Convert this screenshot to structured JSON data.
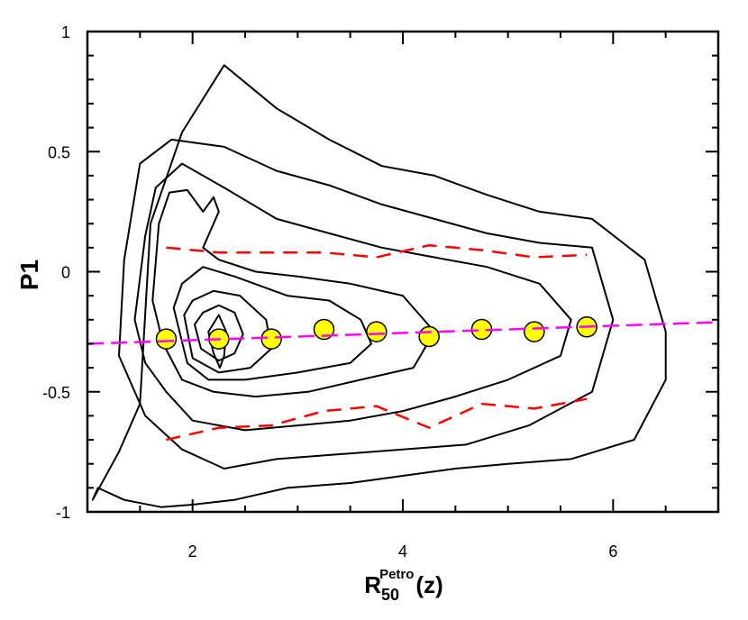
{
  "chart_data": {
    "type": "scatter",
    "title": "",
    "xlabel": {
      "main": "R",
      "sub": "50",
      "sup": "Petro",
      "suffix": "(z)"
    },
    "ylabel": "P1",
    "xlim": [
      1.0,
      7.0
    ],
    "ylim": [
      -1.0,
      1.0
    ],
    "x_ticks": [
      2,
      4,
      6
    ],
    "y_ticks": [
      -1,
      -0.5,
      0,
      0.5,
      1
    ],
    "y_tick_labels": [
      "-1",
      "-0.5",
      "0",
      "0.5",
      "1"
    ],
    "grid": false,
    "series": [
      {
        "kind": "points",
        "color": "#ffff00",
        "x": [
          1.75,
          2.25,
          2.75,
          3.25,
          3.75,
          4.25,
          4.75,
          5.25,
          5.75
        ],
        "y": [
          -0.28,
          -0.28,
          -0.28,
          -0.24,
          -0.25,
          -0.27,
          -0.24,
          -0.25,
          -0.23
        ]
      },
      {
        "kind": "fit-line",
        "color": "#ff00ff",
        "style": "dashed",
        "x": [
          1.0,
          7.0
        ],
        "y": [
          -0.3,
          -0.21
        ]
      },
      {
        "kind": "upper-percentile",
        "color": "#ff0000",
        "style": "dashed",
        "x": [
          1.75,
          2.25,
          2.75,
          3.25,
          3.75,
          4.25,
          4.75,
          5.25,
          5.75
        ],
        "y": [
          0.1,
          0.08,
          0.08,
          0.08,
          0.06,
          0.11,
          0.09,
          0.06,
          0.07
        ]
      },
      {
        "kind": "lower-percentile",
        "color": "#ff0000",
        "style": "dashed",
        "x": [
          1.75,
          2.25,
          2.75,
          3.25,
          3.75,
          4.25,
          4.75,
          5.25,
          5.75
        ],
        "y": [
          -0.7,
          -0.65,
          -0.64,
          -0.58,
          -0.56,
          -0.65,
          -0.55,
          -0.57,
          -0.53
        ]
      }
    ],
    "contours": [
      {
        "level": 1,
        "x": [
          1.05,
          1.3,
          1.5,
          1.6,
          1.9,
          2.3,
          2.8,
          3.3,
          3.8,
          4.3,
          4.8,
          5.3,
          5.8,
          6.3,
          6.5,
          6.5,
          6.2,
          5.6,
          5.0,
          4.5,
          4.0,
          3.5,
          2.9,
          2.4,
          2.0,
          1.7,
          1.35,
          1.1,
          1.05
        ],
        "y": [
          -0.95,
          -0.75,
          -0.55,
          0.2,
          0.58,
          0.86,
          0.68,
          0.55,
          0.44,
          0.4,
          0.32,
          0.25,
          0.22,
          0.05,
          -0.25,
          -0.45,
          -0.7,
          -0.78,
          -0.8,
          -0.82,
          -0.85,
          -0.88,
          -0.9,
          -0.95,
          -0.97,
          -0.98,
          -0.95,
          -0.9,
          -0.95
        ]
      },
      {
        "level": 2,
        "x": [
          1.3,
          1.35,
          1.5,
          1.8,
          2.3,
          2.8,
          3.3,
          3.8,
          4.3,
          4.8,
          5.3,
          5.8,
          6.0,
          5.8,
          5.2,
          4.6,
          4.0,
          3.4,
          2.8,
          2.3,
          1.9,
          1.55,
          1.3
        ],
        "y": [
          -0.35,
          0.05,
          0.45,
          0.55,
          0.52,
          0.42,
          0.36,
          0.28,
          0.22,
          0.16,
          0.12,
          0.1,
          -0.2,
          -0.5,
          -0.64,
          -0.72,
          -0.74,
          -0.76,
          -0.78,
          -0.82,
          -0.74,
          -0.6,
          -0.35
        ]
      },
      {
        "level": 3,
        "x": [
          1.45,
          1.55,
          1.65,
          1.9,
          2.3,
          2.8,
          3.3,
          3.8,
          4.3,
          4.8,
          5.3,
          5.6,
          5.5,
          5.0,
          4.5,
          4.0,
          3.5,
          3.0,
          2.5,
          2.0,
          1.75,
          1.55,
          1.45
        ],
        "y": [
          -0.2,
          0.15,
          0.35,
          0.45,
          0.35,
          0.22,
          0.16,
          0.1,
          0.06,
          0.02,
          -0.05,
          -0.2,
          -0.35,
          -0.45,
          -0.52,
          -0.58,
          -0.62,
          -0.64,
          -0.66,
          -0.62,
          -0.5,
          -0.38,
          -0.2
        ]
      },
      {
        "level": 4,
        "x": [
          1.62,
          1.68,
          1.78,
          1.95,
          2.1,
          2.2,
          2.25,
          2.1,
          2.25,
          2.6,
          3.0,
          3.5,
          4.0,
          4.3,
          4.1,
          3.6,
          3.1,
          2.6,
          2.2,
          1.9,
          1.72,
          1.62
        ],
        "y": [
          -0.12,
          0.2,
          0.33,
          0.34,
          0.25,
          0.31,
          0.25,
          0.1,
          0.05,
          0.0,
          -0.02,
          -0.05,
          -0.1,
          -0.25,
          -0.4,
          -0.45,
          -0.5,
          -0.52,
          -0.5,
          -0.45,
          -0.3,
          -0.12
        ]
      },
      {
        "level": 5,
        "x": [
          1.82,
          1.9,
          2.1,
          2.4,
          2.9,
          3.3,
          3.6,
          3.7,
          3.5,
          3.0,
          2.5,
          2.15,
          1.95,
          1.82
        ],
        "y": [
          -0.15,
          -0.05,
          0.02,
          -0.02,
          -0.1,
          -0.12,
          -0.2,
          -0.3,
          -0.38,
          -0.42,
          -0.45,
          -0.45,
          -0.38,
          -0.15
        ]
      },
      {
        "level": 6,
        "x": [
          1.92,
          2.0,
          2.2,
          2.45,
          2.7,
          2.75,
          2.55,
          2.25,
          2.0,
          1.92
        ],
        "y": [
          -0.18,
          -0.12,
          -0.08,
          -0.1,
          -0.2,
          -0.32,
          -0.4,
          -0.42,
          -0.36,
          -0.18
        ]
      },
      {
        "level": 7,
        "x": [
          2.02,
          2.1,
          2.25,
          2.4,
          2.48,
          2.4,
          2.25,
          2.08,
          2.02
        ],
        "y": [
          -0.22,
          -0.17,
          -0.14,
          -0.17,
          -0.26,
          -0.34,
          -0.37,
          -0.32,
          -0.22
        ]
      },
      {
        "level": 8,
        "x": [
          2.15,
          2.25,
          2.32,
          2.3,
          2.26,
          2.2,
          2.15
        ],
        "y": [
          -0.25,
          -0.18,
          -0.25,
          -0.35,
          -0.4,
          -0.34,
          -0.25
        ]
      }
    ]
  }
}
